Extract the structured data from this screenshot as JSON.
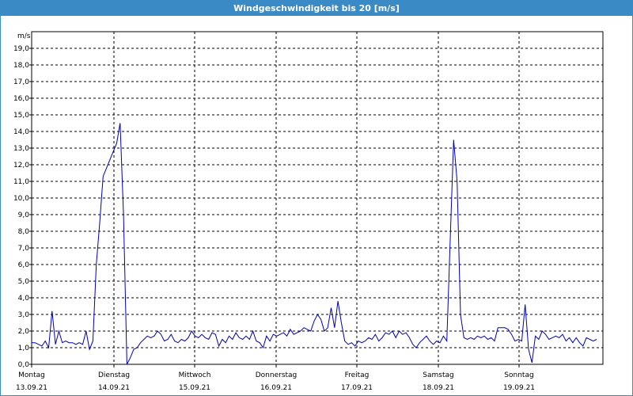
{
  "window": {
    "title": "Windgeschwindigkeit bis 20 [m/s]"
  },
  "chart_data": {
    "type": "line",
    "title": "Windgeschwindigkeit bis 20 [m/s]",
    "ylabel": "m/s",
    "ylim": [
      0,
      20
    ],
    "y_ticks": [
      "0,0",
      "1,0",
      "2,0",
      "3,0",
      "4,0",
      "5,0",
      "6,0",
      "7,0",
      "8,0",
      "9,0",
      "10,0",
      "11,0",
      "12,0",
      "13,0",
      "14,0",
      "15,0",
      "16,0",
      "17,0",
      "18,0",
      "19,0"
    ],
    "grid": true,
    "x_labels": [
      {
        "day": "Montag",
        "date": "13.09.21"
      },
      {
        "day": "Dienstag",
        "date": "14.09.21"
      },
      {
        "day": "Mittwoch",
        "date": "15.09.21"
      },
      {
        "day": "Donnerstag",
        "date": "16.09.21"
      },
      {
        "day": "Freitag",
        "date": "17.09.21"
      },
      {
        "day": "Samstag",
        "date": "18.09.21"
      },
      {
        "day": "Sonntag",
        "date": "19.09.21"
      }
    ],
    "series_color": "#0000b0",
    "series": [
      {
        "values": [
          1.3,
          1.3,
          1.2,
          1.1,
          1.4,
          1.0,
          3.2,
          1.2,
          2.0,
          1.3,
          1.4,
          1.3,
          1.3,
          1.2,
          1.3,
          1.2,
          2.0,
          0.9,
          1.4,
          6.0,
          8.5,
          11.3,
          11.8,
          12.3,
          12.8,
          13.3,
          14.5,
          9.0,
          0.0,
          0.4,
          0.9,
          1.0,
          1.3,
          1.5,
          1.7,
          1.6,
          1.7,
          2.0,
          1.8,
          1.4,
          1.5,
          1.8,
          1.4,
          1.3,
          1.5,
          1.4,
          1.6,
          2.0,
          1.7,
          1.6,
          1.8,
          1.6,
          1.5,
          1.9,
          1.8,
          1.1,
          1.5,
          1.3,
          1.7,
          1.5,
          1.9,
          1.6,
          1.5,
          1.7,
          1.5,
          2.0,
          1.4,
          1.3,
          1.0,
          1.7,
          1.4,
          1.8,
          1.7,
          1.8,
          1.9,
          1.7,
          2.1,
          1.8,
          1.9,
          2.0,
          2.2,
          2.1,
          2.0,
          2.6,
          3.0,
          2.7,
          2.0,
          2.2,
          3.4,
          2.2,
          3.8,
          2.5,
          1.4,
          1.2,
          1.3,
          1.1,
          1.4,
          1.3,
          1.4,
          1.6,
          1.5,
          1.8,
          1.4,
          1.6,
          1.9,
          1.8,
          2.0,
          1.6,
          2.0,
          1.8,
          1.9,
          1.6,
          1.2,
          1.0,
          1.3,
          1.5,
          1.7,
          1.4,
          1.2,
          1.4,
          1.3,
          1.7,
          1.4,
          7.5,
          13.5,
          11.0,
          3.0,
          1.6,
          1.5,
          1.6,
          1.5,
          1.7,
          1.6,
          1.7,
          1.5,
          1.6,
          1.4,
          2.2,
          2.2,
          2.2,
          2.1,
          1.8,
          1.4,
          1.5,
          1.4,
          3.6,
          0.9,
          0.1,
          1.7,
          1.5,
          2.0,
          1.8,
          1.5,
          1.6,
          1.7,
          1.6,
          1.8,
          1.4,
          1.6,
          1.3,
          1.6,
          1.3,
          1.1,
          1.6,
          1.5,
          1.4,
          1.5
        ]
      }
    ]
  }
}
